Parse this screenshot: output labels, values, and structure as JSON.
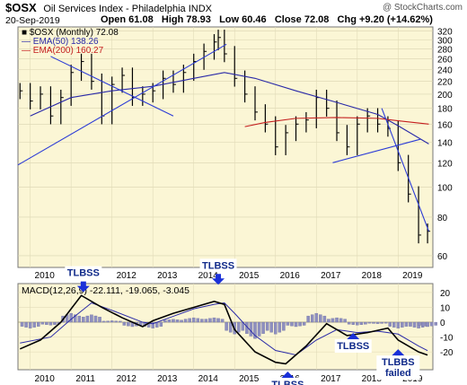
{
  "header": {
    "symbol": "$OSX",
    "description": "Oil Services Index - Philadelphia INDX",
    "credit": "@ StockCharts.com",
    "date": "20-Sep-2019",
    "open": "Open 61.08",
    "high": "High 78.93",
    "low": "Low 60.46",
    "close": "Close 72.08",
    "chg": "Chg +9.20 (+14.62%)"
  },
  "legend": {
    "price": "$OSX (Monthly) 72.08",
    "ema50": "EMA(50) 138.26",
    "ema200": "EMA(200) 160.27",
    "macd": "MACD(12,26,9) -22.111, -19.065, -3.045"
  },
  "colors": {
    "panel_bg": "#fbf6d5",
    "ema50": "#2a2aa8",
    "ema200": "#c41e1e",
    "trendline": "#2b3bd6",
    "histogram": "#8e8fbf",
    "arrow": "#1a30d8"
  },
  "annotations": [
    {
      "text": "TLBSS",
      "year": 2011.3,
      "level": 19
    },
    {
      "text": "TLBSS",
      "year": 2014.6,
      "level": 24
    },
    {
      "text": "TLBSS",
      "year": 2016.3,
      "level": -32
    },
    {
      "text": "TLBSS",
      "year": 2017.9,
      "level": -6
    },
    {
      "text": "TLBBS failed",
      "year": 2019.0,
      "level": -17
    }
  ],
  "chart_data": [
    {
      "type": "line",
      "title": "$OSX (Monthly)",
      "x_ticks": [
        "2010",
        "2011",
        "2012",
        "2013",
        "2014",
        "2015",
        "2016",
        "2017",
        "2018",
        "2019"
      ],
      "y_ticks": [
        60,
        80,
        100,
        120,
        140,
        160,
        180,
        200,
        220,
        240,
        260,
        280,
        300,
        320
      ],
      "y_scale": "log",
      "ylim": [
        55,
        330
      ],
      "xlim": [
        2009.7,
        2019.85
      ],
      "series": [
        {
          "name": "$OSX (Monthly)",
          "x": [
            2009.75,
            2010.0,
            2010.25,
            2010.5,
            2010.75,
            2011.0,
            2011.25,
            2011.5,
            2011.75,
            2012.0,
            2012.25,
            2012.5,
            2012.75,
            2013.0,
            2013.25,
            2013.5,
            2013.75,
            2014.0,
            2014.25,
            2014.5,
            2014.6,
            2014.75,
            2015.0,
            2015.25,
            2015.5,
            2015.75,
            2016.0,
            2016.25,
            2016.5,
            2016.75,
            2017.0,
            2017.25,
            2017.5,
            2017.75,
            2018.0,
            2018.25,
            2018.5,
            2018.75,
            2019.0,
            2019.25,
            2019.5,
            2019.72
          ],
          "values": [
            205,
            190,
            200,
            170,
            195,
            235,
            255,
            220,
            170,
            215,
            230,
            195,
            200,
            205,
            225,
            215,
            235,
            255,
            275,
            295,
            305,
            270,
            225,
            200,
            175,
            160,
            135,
            150,
            160,
            165,
            195,
            180,
            150,
            135,
            160,
            170,
            160,
            155,
            120,
            95,
            70,
            72
          ]
        },
        {
          "name": "EMA(50)",
          "x": [
            2010.0,
            2011.0,
            2012.0,
            2013.0,
            2014.0,
            2014.75,
            2015.5,
            2016.5,
            2017.5,
            2018.5,
            2019.0,
            2019.75
          ],
          "values": [
            170,
            195,
            205,
            212,
            225,
            235,
            225,
            205,
            188,
            172,
            158,
            138
          ]
        },
        {
          "name": "EMA(200)",
          "x": [
            2015.25,
            2015.75,
            2016.5,
            2017.5,
            2018.5,
            2019.0,
            2019.75
          ],
          "values": [
            157,
            162,
            167,
            168,
            167,
            164,
            160
          ]
        }
      ]
    },
    {
      "type": "line",
      "title": "MACD(12,26,9)",
      "x_ticks": [
        "2010",
        "2011",
        "2012",
        "2013",
        "2014",
        "2015",
        "2016",
        "2017",
        "2018",
        "2019"
      ],
      "y_ticks": [
        20,
        10,
        0,
        -10,
        -20
      ],
      "ylim": [
        -32,
        26
      ],
      "xlim": [
        2009.7,
        2019.85
      ],
      "series": [
        {
          "name": "MACD",
          "x": [
            2009.75,
            2010.25,
            2010.75,
            2011.25,
            2011.75,
            2012.25,
            2012.75,
            2013.0,
            2013.5,
            2014.0,
            2014.5,
            2014.75,
            2015.0,
            2015.5,
            2016.0,
            2016.25,
            2016.75,
            2017.25,
            2017.75,
            2018.25,
            2018.75,
            2019.0,
            2019.5,
            2019.72
          ],
          "values": [
            -18,
            -12,
            0,
            18,
            10,
            3,
            -3,
            1,
            6,
            10,
            14,
            12,
            -5,
            -20,
            -27,
            -28,
            -16,
            -1,
            -9,
            -7,
            -4,
            -12,
            -20,
            -22.1
          ]
        },
        {
          "name": "Signal",
          "x": [
            2009.75,
            2010.5,
            2011.0,
            2011.5,
            2012.0,
            2012.75,
            2013.0,
            2013.5,
            2014.0,
            2014.5,
            2014.75,
            2015.0,
            2015.5,
            2016.0,
            2016.5,
            2017.0,
            2017.5,
            2018.0,
            2018.5,
            2019.0,
            2019.5,
            2019.72
          ],
          "values": [
            -14,
            -10,
            2,
            13,
            8,
            0,
            -1,
            4,
            9,
            12,
            13,
            6,
            -9,
            -19,
            -22,
            -12,
            -5,
            -7,
            -6,
            -8,
            -16,
            -19.1
          ]
        },
        {
          "name": "Histogram",
          "x": [
            2010.0,
            2010.5,
            2011.0,
            2011.5,
            2012.0,
            2012.5,
            2013.0,
            2013.5,
            2014.0,
            2014.5,
            2015.0,
            2015.5,
            2016.0,
            2016.5,
            2017.0,
            2017.5,
            2018.0,
            2018.5,
            2019.0,
            2019.5,
            2019.72
          ],
          "values": [
            -4,
            -2,
            6,
            5,
            1,
            -3,
            -4,
            2,
            3,
            3,
            -8,
            -11,
            -8,
            -3,
            6,
            3,
            -2,
            -1,
            -4,
            -4,
            -3
          ]
        }
      ]
    }
  ]
}
